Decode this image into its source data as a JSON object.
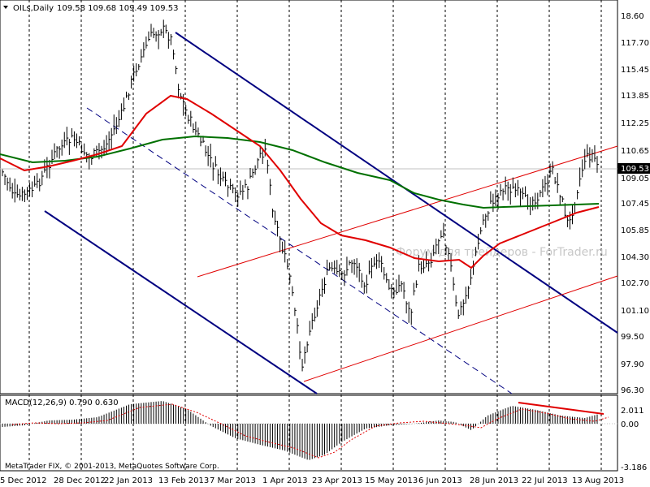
{
  "header": {
    "title": "OILs,Daily",
    "ohlc": "109.58 109.68 109.49 109.53"
  },
  "watermark": "Форум для трейдеров - ForTrader.ru",
  "copyright": "MetaTrader FIX, © 2001-2013, MetaQuotes Software Corp.",
  "colors": {
    "price_bars": "#000000",
    "ma_fast": "#e00000",
    "ma_slow": "#007000",
    "down_channel": "#000080",
    "up_channel": "#e00000",
    "macd_hist": "#000000",
    "macd_signal": "#e00000",
    "divergence_line": "#e00000",
    "grid": "#000000",
    "price_line": "#c0c0c0"
  },
  "price_axis": {
    "labels": [
      "18.60",
      "117.70",
      "115.45",
      "113.85",
      "112.25",
      "110.65",
      "109.05",
      "107.45",
      "105.85",
      "104.30",
      "102.70",
      "101.10",
      "99.50",
      "97.90",
      "96.30"
    ],
    "current_price": "109.53"
  },
  "macd": {
    "label": "MACD(12,26,9) 0.790 0.630",
    "axis_labels": [
      "2.011",
      "0.00",
      "-3.186"
    ]
  },
  "time_axis": {
    "labels": [
      "5 Dec 2012",
      "28 Dec 2012",
      "22 Jan 2013",
      "13 Feb 2013",
      "7 Mar 2013",
      "1 Apr 2013",
      "23 Apr 2013",
      "15 May 2013",
      "6 Jun 2013",
      "28 Jun 2013",
      "22 Jul 2013",
      "13 Aug 2013"
    ]
  }
}
